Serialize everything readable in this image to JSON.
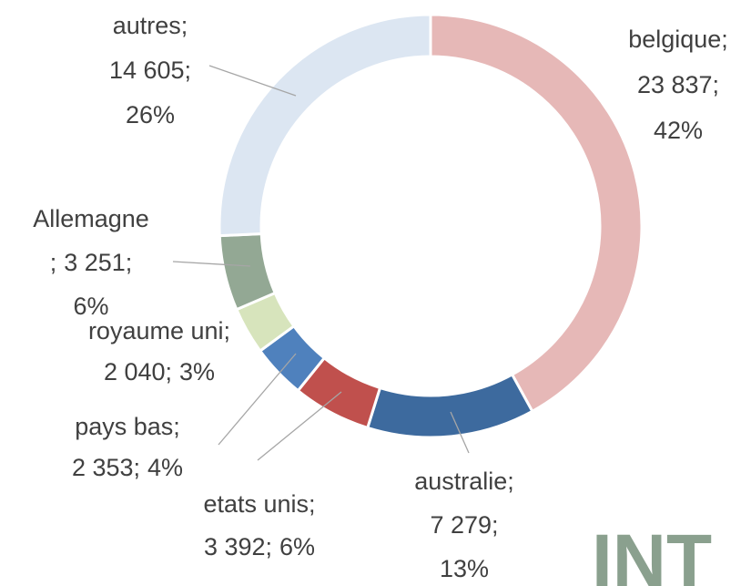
{
  "chart_data": {
    "type": "donut",
    "categories": [
      "belgique",
      "australie",
      "etats unis",
      "pays bas",
      "royaume uni",
      "Allemagne",
      "autres"
    ],
    "values": [
      23837,
      7279,
      3392,
      2353,
      2040,
      3251,
      14605
    ],
    "value_labels": [
      "23 837",
      "7 279",
      "3 392",
      "2 353",
      "2 040",
      "3 251",
      "14 605"
    ],
    "percents": [
      42,
      13,
      6,
      4,
      3,
      6,
      26
    ],
    "percent_labels": [
      "42%",
      "13%",
      "6%",
      "4%",
      "3%",
      "6%",
      "26%"
    ],
    "separator": ";",
    "colors": [
      "#e6b8b7",
      "#3d6a9e",
      "#c0504d",
      "#4f81bd",
      "#d7e4bc",
      "#93a894",
      "#dce6f2"
    ],
    "watermark": "INT"
  }
}
